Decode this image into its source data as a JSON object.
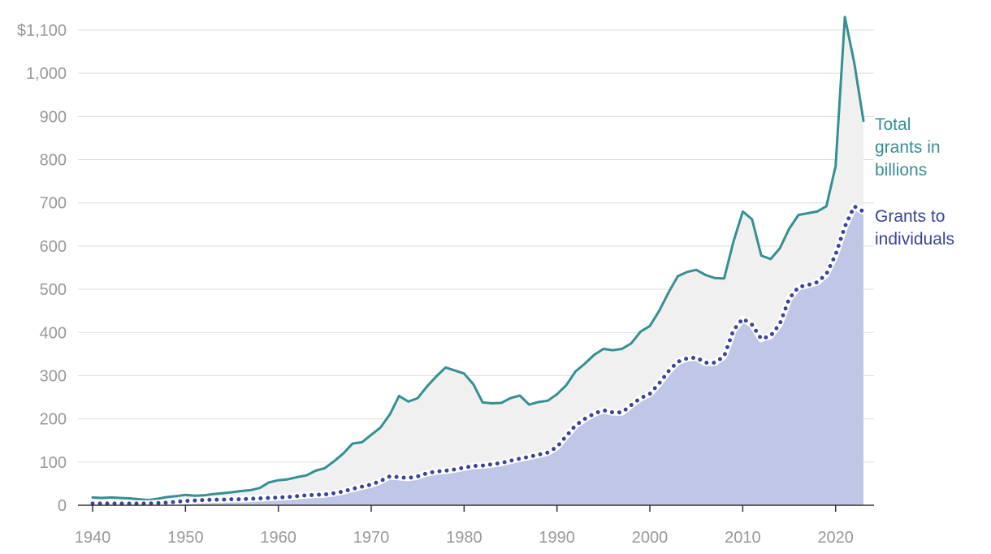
{
  "chart_data": {
    "type": "area",
    "title": "",
    "xlabel": "",
    "ylabel": "",
    "xlim": [
      1938,
      2025
    ],
    "ylim": [
      0,
      1100
    ],
    "x_ticks": [
      "1940",
      "1950",
      "1960",
      "1970",
      "1980",
      "1990",
      "2000",
      "2010",
      "2020"
    ],
    "y_ticks": [
      "0",
      "100",
      "200",
      "300",
      "400",
      "500",
      "600",
      "700",
      "800",
      "900",
      "1,000",
      "$1,100"
    ],
    "grid": true,
    "colors": {
      "total_line": "#358f93",
      "total_fill": "#f0f0f0",
      "individuals_line": "#39449a",
      "individuals_fill": "#c0c6e6",
      "grid": "#dddddd",
      "axis": "#333333"
    },
    "x": [
      1940,
      1941,
      1942,
      1943,
      1944,
      1945,
      1946,
      1947,
      1948,
      1949,
      1950,
      1951,
      1952,
      1953,
      1954,
      1955,
      1956,
      1957,
      1958,
      1959,
      1960,
      1961,
      1962,
      1963,
      1964,
      1965,
      1966,
      1967,
      1968,
      1969,
      1970,
      1971,
      1972,
      1973,
      1974,
      1975,
      1976,
      1977,
      1978,
      1979,
      1980,
      1981,
      1982,
      1983,
      1984,
      1985,
      1986,
      1987,
      1988,
      1989,
      1990,
      1991,
      1992,
      1993,
      1994,
      1995,
      1996,
      1997,
      1998,
      1999,
      2000,
      2001,
      2002,
      2003,
      2004,
      2005,
      2006,
      2007,
      2008,
      2009,
      2010,
      2011,
      2012,
      2013,
      2014,
      2015,
      2016,
      2017,
      2018,
      2019,
      2020,
      2021,
      2022,
      2023
    ],
    "series": [
      {
        "name": "Total grants in billions",
        "style": "solid",
        "values": [
          18,
          17,
          18,
          17,
          16,
          14,
          12,
          15,
          19,
          21,
          24,
          22,
          23,
          26,
          28,
          30,
          33,
          35,
          40,
          53,
          58,
          60,
          65,
          69,
          80,
          86,
          102,
          120,
          143,
          146,
          163,
          180,
          210,
          253,
          240,
          248,
          275,
          298,
          319,
          312,
          305,
          280,
          238,
          236,
          237,
          248,
          254,
          233,
          239,
          242,
          257,
          278,
          310,
          328,
          348,
          362,
          359,
          362,
          375,
          402,
          415,
          450,
          492,
          530,
          540,
          545,
          533,
          526,
          525,
          610,
          680,
          662,
          578,
          570,
          595,
          640,
          672,
          676,
          680,
          692,
          785,
          1130,
          1025,
          890
        ]
      },
      {
        "name": "Grants to individuals",
        "style": "dotted",
        "values": [
          4,
          4,
          4,
          4,
          4,
          4,
          4,
          5,
          6,
          8,
          10,
          11,
          12,
          13,
          13,
          14,
          14,
          15,
          16,
          17,
          18,
          19,
          21,
          23,
          24,
          25,
          28,
          32,
          38,
          43,
          48,
          56,
          67,
          65,
          63,
          67,
          74,
          78,
          80,
          83,
          87,
          91,
          92,
          95,
          98,
          103,
          108,
          112,
          117,
          122,
          135,
          160,
          185,
          200,
          212,
          220,
          215,
          215,
          232,
          248,
          258,
          282,
          310,
          332,
          340,
          342,
          330,
          330,
          345,
          405,
          432,
          418,
          385,
          392,
          420,
          478,
          505,
          510,
          516,
          535,
          580,
          645,
          692,
          680
        ]
      }
    ]
  }
}
